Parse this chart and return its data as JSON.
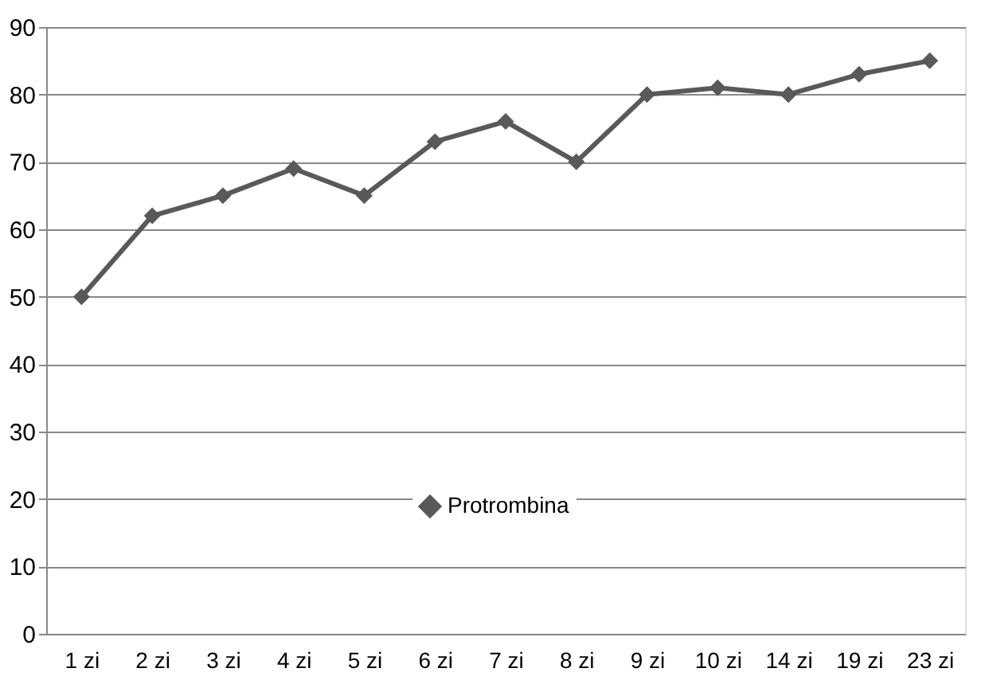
{
  "chart_data": {
    "type": "line",
    "categories": [
      "1 zi",
      "2 zi",
      "3 zi",
      "4 zi",
      "5 zi",
      "6 zi",
      "7 zi",
      "8 zi",
      "9 zi",
      "10 zi",
      "14 zi",
      "19 zi",
      "23 zi"
    ],
    "series": [
      {
        "name": "Protrombina",
        "color": "#595959",
        "values": [
          50,
          62,
          65,
          69,
          65,
          73,
          76,
          70,
          80,
          81,
          80,
          83,
          85
        ]
      }
    ],
    "ylim": [
      0,
      90
    ],
    "yticks": [
      0,
      10,
      20,
      30,
      40,
      50,
      60,
      70,
      80,
      90
    ],
    "grid": "y",
    "legend": "bottom",
    "marker": "diamond",
    "line_style": "solid"
  }
}
